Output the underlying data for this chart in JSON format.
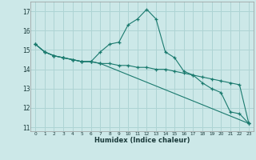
{
  "xlabel": "Humidex (Indice chaleur)",
  "bg_color": "#cce8e8",
  "grid_color": "#aed4d4",
  "line_color": "#1a7a6e",
  "xlim": [
    -0.5,
    23.5
  ],
  "ylim": [
    10.8,
    17.5
  ],
  "yticks": [
    11,
    12,
    13,
    14,
    15,
    16,
    17
  ],
  "xticks": [
    0,
    1,
    2,
    3,
    4,
    5,
    6,
    7,
    8,
    9,
    10,
    11,
    12,
    13,
    14,
    15,
    16,
    17,
    18,
    19,
    20,
    21,
    22,
    23
  ],
  "series1_x": [
    0,
    1,
    2,
    3,
    4,
    5,
    6,
    7,
    8,
    9,
    10,
    11,
    12,
    13,
    14,
    15,
    16,
    17,
    18,
    19,
    20,
    21,
    22,
    23
  ],
  "series1_y": [
    15.3,
    14.9,
    14.7,
    14.6,
    14.5,
    14.4,
    14.4,
    14.9,
    15.3,
    15.4,
    16.3,
    16.6,
    17.1,
    16.6,
    14.9,
    14.6,
    13.9,
    13.7,
    13.3,
    13.0,
    12.8,
    11.8,
    11.7,
    11.2
  ],
  "series2_x": [
    0,
    1,
    2,
    3,
    4,
    5,
    6,
    7,
    23
  ],
  "series2_y": [
    15.3,
    14.9,
    14.7,
    14.6,
    14.5,
    14.4,
    14.4,
    14.3,
    11.2
  ],
  "series3_x": [
    0,
    1,
    2,
    3,
    4,
    5,
    6,
    7,
    8,
    9,
    10,
    11,
    12,
    13,
    14,
    15,
    16,
    17,
    18,
    19,
    20,
    21,
    22,
    23
  ],
  "series3_y": [
    15.3,
    14.9,
    14.7,
    14.6,
    14.5,
    14.4,
    14.4,
    14.3,
    14.3,
    14.2,
    14.2,
    14.1,
    14.1,
    14.0,
    14.0,
    13.9,
    13.8,
    13.7,
    13.6,
    13.5,
    13.4,
    13.3,
    13.2,
    11.2
  ]
}
